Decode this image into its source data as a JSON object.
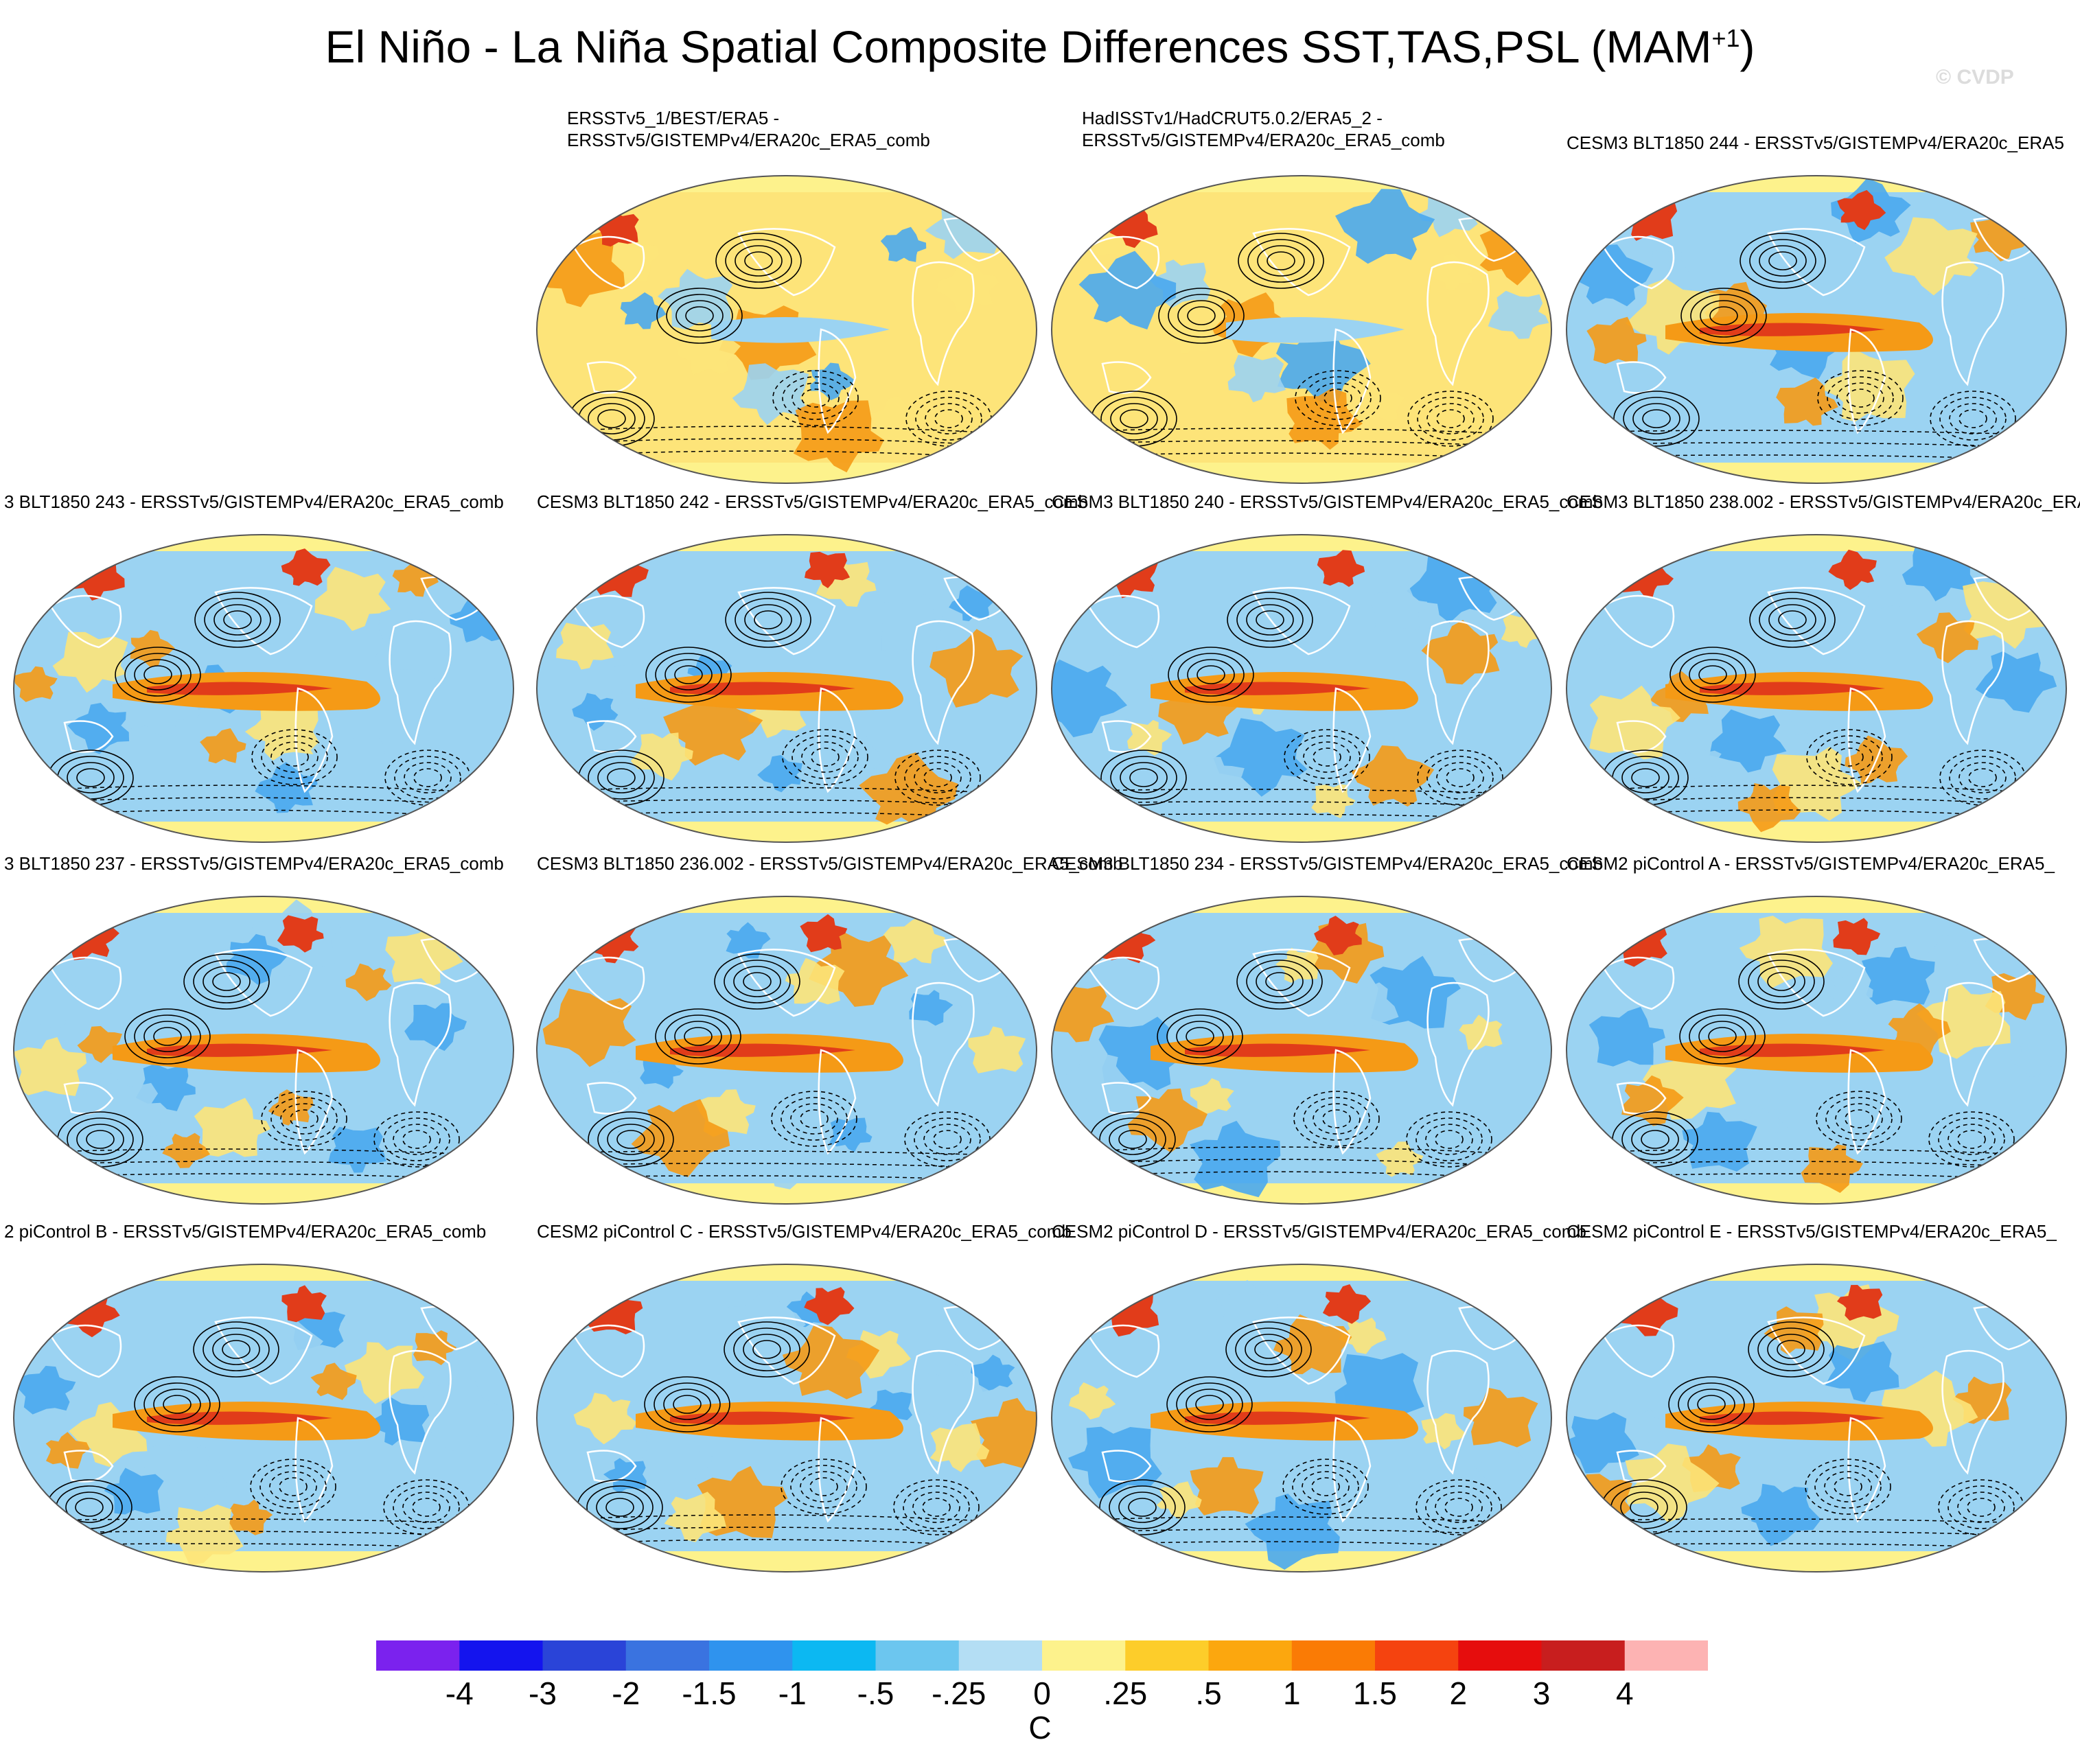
{
  "title": {
    "main": "El Niño - La Niña Spatial Composite Differences SST,TAS,PSL (MAM",
    "superscript": "+1",
    "close": ")"
  },
  "watermark": "© CVDP",
  "palette": {
    "ocean_cool": "#9bd3f2",
    "ocean_cold": "#4aa8ee",
    "warm": "#fde479",
    "hot": "#f59a16",
    "very_hot": "#e13c1a",
    "land_outline": "#ffffff",
    "contour": "#000000"
  },
  "panels": [
    {
      "id": "obs1",
      "title_line1": "ERSSTv5_1/BEST/ERA5 -",
      "title_line2": "ERSSTv5/GISTEMPv4/ERA20c_ERA5_comb",
      "pattern": "obs"
    },
    {
      "id": "obs2",
      "title_line1": "HadISSTv1/HadCRUT5.0.2/ERA5_2 -",
      "title_line2": "ERSSTv5/GISTEMPv4/ERA20c_ERA5_comb",
      "pattern": "obs"
    },
    {
      "id": "m244",
      "title_line1": "",
      "title_line2": "CESM3 BLT1850 244 - ERSSTv5/GISTEMPv4/ERA20c_ERA5",
      "pattern": "nino"
    },
    {
      "id": "m243",
      "title_line1": "",
      "title_line2": "3 BLT1850 243 - ERSSTv5/GISTEMPv4/ERA20c_ERA5_comb",
      "pattern": "nino"
    },
    {
      "id": "m242",
      "title_line1": "",
      "title_line2": "CESM3 BLT1850 242 - ERSSTv5/GISTEMPv4/ERA20c_ERA5_comb",
      "pattern": "nino"
    },
    {
      "id": "m240",
      "title_line1": "",
      "title_line2": "CESM3 BLT1850 240 - ERSSTv5/GISTEMPv4/ERA20c_ERA5_comb",
      "pattern": "nino"
    },
    {
      "id": "m238",
      "title_line1": "",
      "title_line2": "CESM3 BLT1850 238.002 - ERSSTv5/GISTEMPv4/ERA20c_ERA",
      "pattern": "nino"
    },
    {
      "id": "m237",
      "title_line1": "",
      "title_line2": "3 BLT1850 237 - ERSSTv5/GISTEMPv4/ERA20c_ERA5_comb",
      "pattern": "nino"
    },
    {
      "id": "m236",
      "title_line1": "",
      "title_line2": "CESM3 BLT1850 236.002 - ERSSTv5/GISTEMPv4/ERA20c_ERA5_comb",
      "pattern": "nino"
    },
    {
      "id": "m234",
      "title_line1": "",
      "title_line2": "CESM3 BLT1850 234 - ERSSTv5/GISTEMPv4/ERA20c_ERA5_comb",
      "pattern": "nino"
    },
    {
      "id": "pA",
      "title_line1": "",
      "title_line2": "CESM2 piControl A - ERSSTv5/GISTEMPv4/ERA20c_ERA5_",
      "pattern": "nino"
    },
    {
      "id": "pB",
      "title_line1": "",
      "title_line2": "2 piControl B - ERSSTv5/GISTEMPv4/ERA20c_ERA5_comb",
      "pattern": "nino"
    },
    {
      "id": "pC",
      "title_line1": "",
      "title_line2": "CESM2 piControl C - ERSSTv5/GISTEMPv4/ERA20c_ERA5_comb",
      "pattern": "nino"
    },
    {
      "id": "pD",
      "title_line1": "",
      "title_line2": "CESM2 piControl D - ERSSTv5/GISTEMPv4/ERA20c_ERA5_comb",
      "pattern": "nino"
    },
    {
      "id": "pE",
      "title_line1": "",
      "title_line2": "CESM2 piControl E - ERSSTv5/GISTEMPv4/ERA20c_ERA5_",
      "pattern": "nino"
    }
  ],
  "colorbar": {
    "colors": [
      "#7b22ee",
      "#1414ee",
      "#2a44d8",
      "#3a73e0",
      "#2f93ee",
      "#0cb8f2",
      "#6cc6ef",
      "#b4def4",
      "#fdf28c",
      "#fdcd2a",
      "#fca70e",
      "#fa7b05",
      "#f5430f",
      "#e60d0d",
      "#c81e1e",
      "#fdb3b3"
    ],
    "labels": [
      "-4",
      "-3",
      "-2",
      "-1.5",
      "-1",
      "-.5",
      "-.25",
      "0",
      ".25",
      ".5",
      "1",
      "1.5",
      "2",
      "3",
      "4"
    ],
    "units": "C"
  }
}
